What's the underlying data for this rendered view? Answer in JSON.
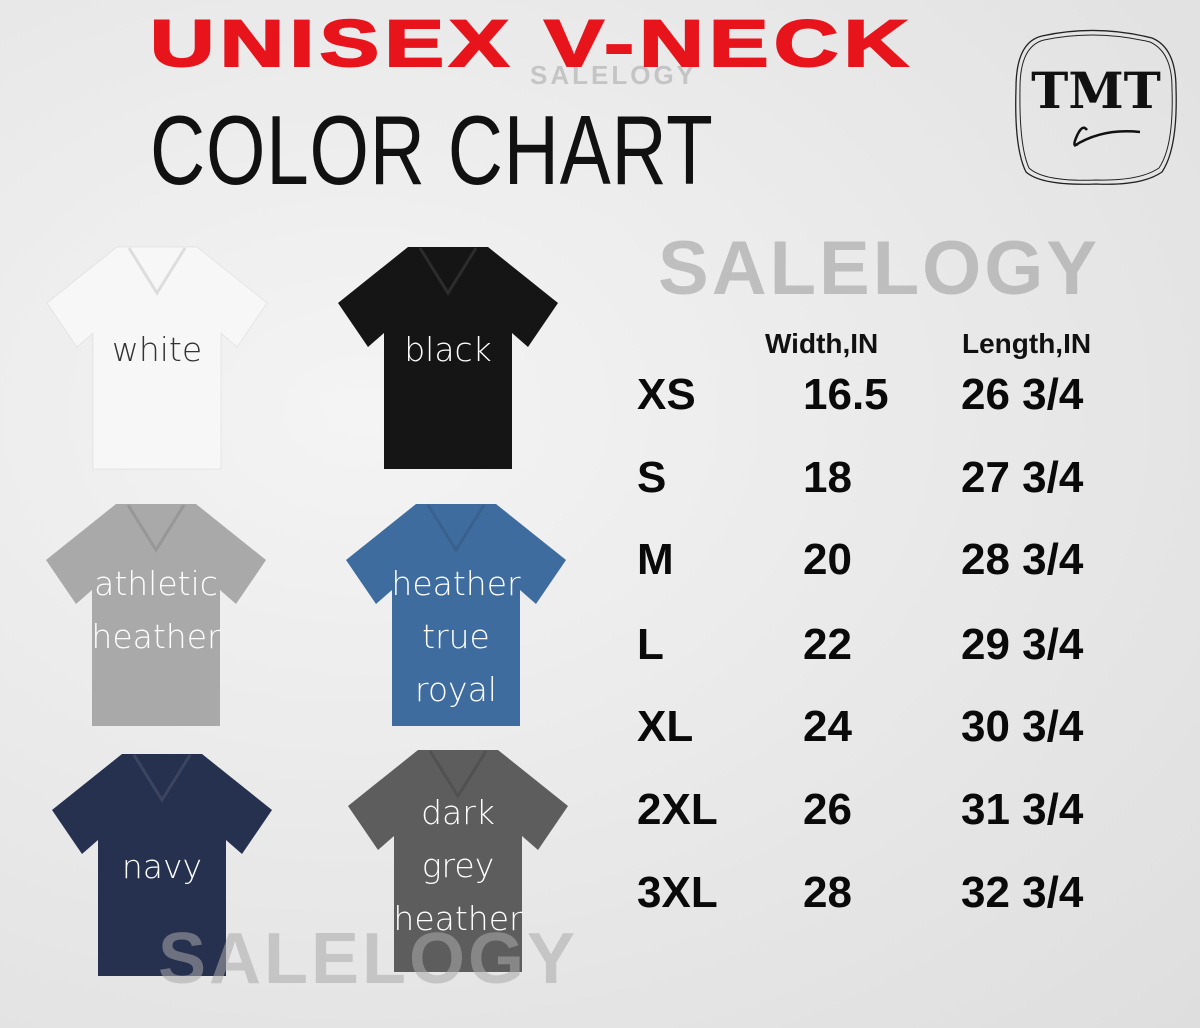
{
  "header": {
    "title": "UNISEX V-NECK",
    "subtitle": "COLOR CHART"
  },
  "watermarks": [
    "SALELOGY",
    "SALELOGY",
    "SALELOGY"
  ],
  "logo": {
    "text": "TMT"
  },
  "colors_list": [
    {
      "label_lines": [
        "white"
      ],
      "fill": "#f7f7f7",
      "text_color": "#333333"
    },
    {
      "label_lines": [
        "black"
      ],
      "fill": "#151515",
      "text_color": "#ffffff"
    },
    {
      "label_lines": [
        "athletic",
        "heather"
      ],
      "fill": "#a9a9a9",
      "text_color": "#ffffff"
    },
    {
      "label_lines": [
        "heather",
        "true",
        "royal"
      ],
      "fill": "#3f6c9e",
      "text_color": "#ffffff"
    },
    {
      "label_lines": [
        "navy"
      ],
      "fill": "#26304f",
      "text_color": "#ffffff"
    },
    {
      "label_lines": [
        "dark",
        "grey",
        "heather"
      ],
      "fill": "#5d5d5d",
      "text_color": "#ffffff"
    }
  ],
  "size_table": {
    "headers": {
      "width": "Width,IN",
      "length": "Length,IN"
    },
    "rows": [
      {
        "size": "XS",
        "width": "16.5",
        "length": "26 3/4"
      },
      {
        "size": "S",
        "width": "18",
        "length": "27 3/4"
      },
      {
        "size": "M",
        "width": "20",
        "length": "28 3/4"
      },
      {
        "size": "L",
        "width": "22",
        "length": "29 3/4"
      },
      {
        "size": "XL",
        "width": "24",
        "length": "30 3/4"
      },
      {
        "size": "2XL",
        "width": "26",
        "length": "31 3/4"
      },
      {
        "size": "3XL",
        "width": "28",
        "length": "32 3/4"
      }
    ]
  }
}
